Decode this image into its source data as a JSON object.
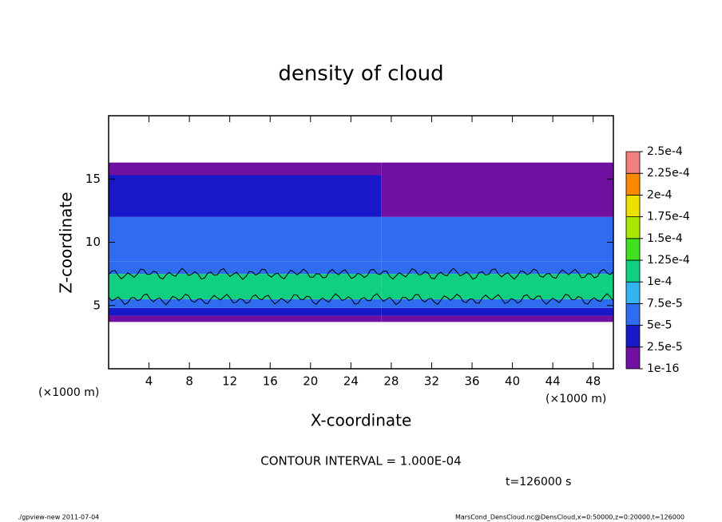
{
  "chart_data": {
    "type": "heatmap",
    "title": "density of cloud",
    "x_label": "X-coordinate",
    "y_label": "Z-coordinate",
    "x_unit": "(×1000 m)",
    "x_unit_right": "(×1000 m)",
    "xlim": [
      0,
      50
    ],
    "ylim": [
      0,
      20
    ],
    "xticks": [
      4,
      8,
      12,
      16,
      20,
      24,
      28,
      32,
      36,
      40,
      44,
      48
    ],
    "yticks": [
      5,
      10,
      15
    ],
    "x": [
      0,
      27,
      50
    ],
    "z": [
      3.7,
      4.2,
      4.8,
      5.5,
      7.5,
      8.5,
      12,
      15.3,
      16.3
    ],
    "values": [
      [
        1e-16,
        1e-16
      ],
      [
        2.5e-05,
        2.5e-05
      ],
      [
        6e-05,
        6e-05
      ],
      [
        0.00011,
        0.00011
      ],
      [
        6e-05,
        6e-05
      ],
      [
        5.5e-05,
        5.5e-05
      ],
      [
        4e-05,
        1.5e-05
      ],
      [
        1e-16,
        1e-16
      ]
    ],
    "levels": [
      {
        "value": 1e-16,
        "label": "1e-16"
      },
      {
        "value": 2.5e-05,
        "label": "2.5e-5"
      },
      {
        "value": 5e-05,
        "label": "5e-5"
      },
      {
        "value": 7.5e-05,
        "label": "7.5e-5"
      },
      {
        "value": 0.0001,
        "label": "1e-4"
      },
      {
        "value": 0.000125,
        "label": "1.25e-4"
      },
      {
        "value": 0.00015,
        "label": "1.5e-4"
      },
      {
        "value": 0.000175,
        "label": "1.75e-4"
      },
      {
        "value": 0.0002,
        "label": "2e-4"
      },
      {
        "value": 0.000225,
        "label": "2.25e-4"
      },
      {
        "value": 0.00025,
        "label": "2.5e-4"
      }
    ],
    "colors": [
      "#7010a0",
      "#1818c8",
      "#2f6cf0",
      "#33b4f0",
      "#10d080",
      "#40e020",
      "#a8e800",
      "#f0e000",
      "#ff8800",
      "#f08080"
    ],
    "contour_interval_text": "CONTOUR INTERVAL = 1.000E-04",
    "time_text": "t=126000 s",
    "footer_left": "./gpview-new   2011-07-04",
    "footer_right": "MarsCond_DensCloud.nc@DensCloud,x=0:50000,z=0:20000,t=126000"
  }
}
